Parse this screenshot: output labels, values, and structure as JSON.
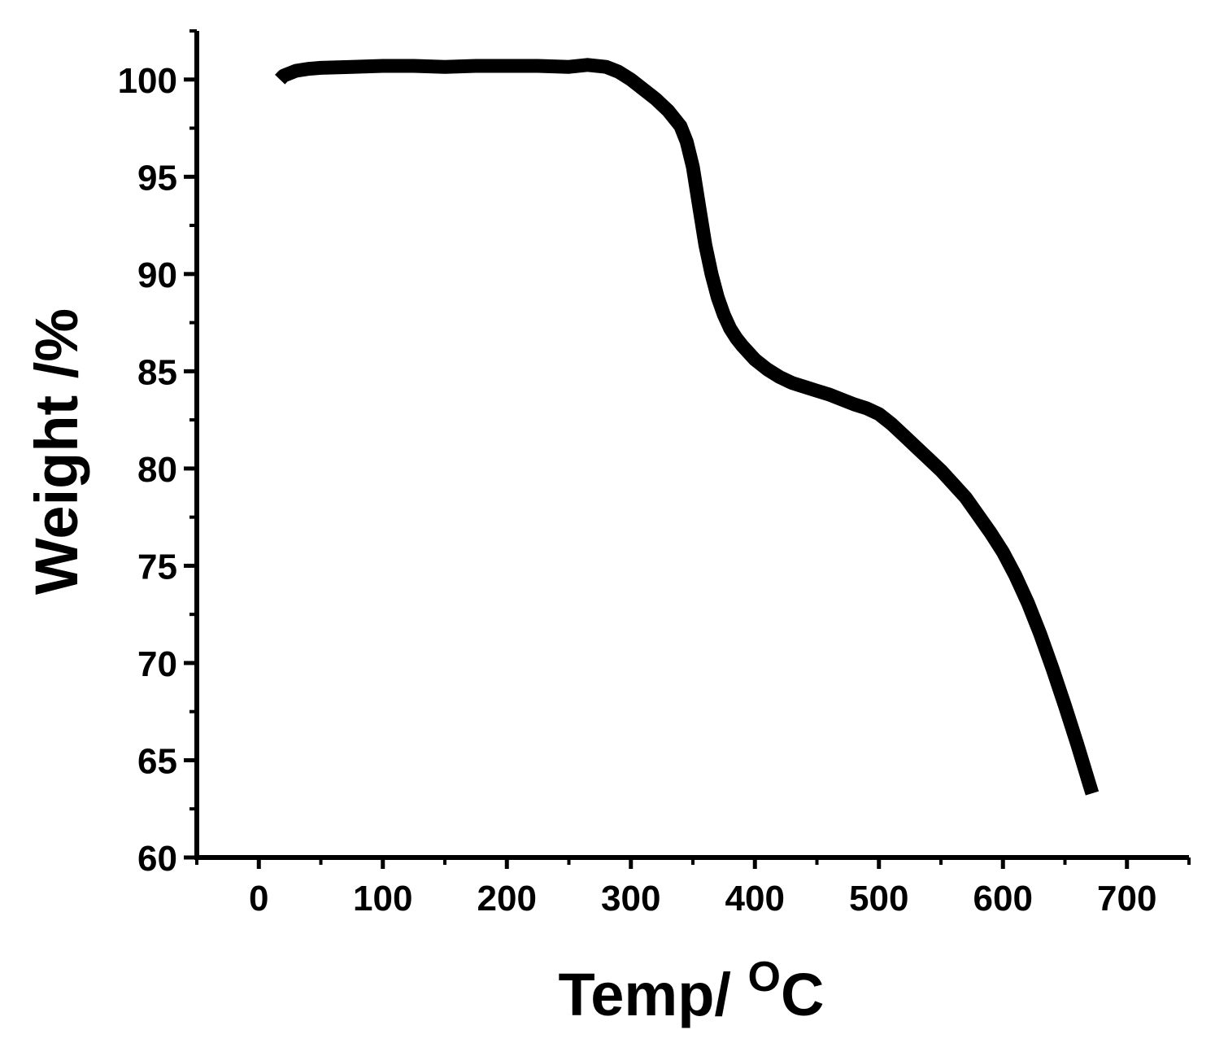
{
  "chart_data": {
    "type": "line",
    "title": "",
    "xlabel": "Temp/ ",
    "xlabel_superscript": "O",
    "xlabel_unit": "C",
    "ylabel": "Weight /%",
    "xlim": [
      -50,
      750
    ],
    "ylim": [
      60,
      102.5
    ],
    "x_ticks": [
      0,
      100,
      200,
      300,
      400,
      500,
      600,
      700
    ],
    "y_ticks": [
      60,
      65,
      70,
      75,
      80,
      85,
      90,
      95,
      100
    ],
    "x_minor_ticks": [
      -50,
      50,
      150,
      250,
      350,
      450,
      550,
      650,
      750
    ],
    "y_minor_ticks": [
      62.5,
      67.5,
      72.5,
      77.5,
      82.5,
      87.5,
      92.5,
      97.5,
      102.5
    ],
    "grid": false,
    "line_color": "#000000",
    "series": [
      {
        "name": "",
        "x": [
          17,
          20,
          30,
          40,
          50,
          75,
          100,
          125,
          150,
          175,
          200,
          225,
          250,
          265,
          280,
          290,
          300,
          310,
          320,
          330,
          340,
          345,
          350,
          355,
          360,
          365,
          370,
          375,
          380,
          385,
          390,
          400,
          410,
          420,
          430,
          440,
          450,
          460,
          470,
          480,
          490,
          500,
          510,
          520,
          530,
          540,
          550,
          560,
          570,
          580,
          590,
          600,
          610,
          620,
          630,
          640,
          650,
          660,
          670,
          672
        ],
        "y": [
          100.0,
          100.2,
          100.45,
          100.55,
          100.6,
          100.65,
          100.7,
          100.7,
          100.65,
          100.7,
          100.7,
          100.7,
          100.65,
          100.75,
          100.65,
          100.4,
          100.0,
          99.5,
          99.0,
          98.4,
          97.6,
          96.8,
          95.5,
          93.5,
          91.5,
          90.0,
          88.8,
          87.9,
          87.2,
          86.7,
          86.3,
          85.6,
          85.1,
          84.7,
          84.4,
          84.2,
          84.0,
          83.8,
          83.55,
          83.3,
          83.1,
          82.8,
          82.3,
          81.7,
          81.1,
          80.5,
          79.9,
          79.2,
          78.5,
          77.6,
          76.7,
          75.7,
          74.5,
          73.1,
          71.5,
          69.7,
          67.8,
          65.8,
          63.7,
          63.3
        ]
      }
    ]
  }
}
